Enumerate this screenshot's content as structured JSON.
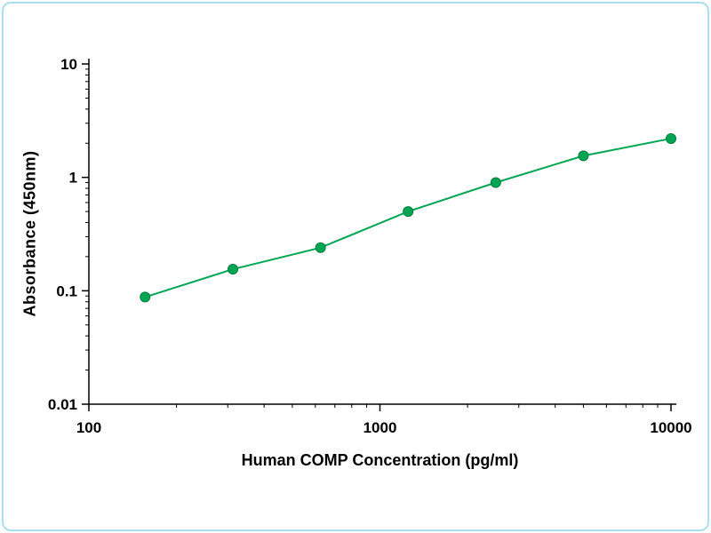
{
  "chart_data": {
    "type": "line",
    "title": "",
    "xlabel": "Human COMP Concentration (pg/ml)",
    "ylabel": "Absorbance (450nm)",
    "xscale": "log",
    "yscale": "log",
    "xlim": [
      100,
      10000
    ],
    "ylim": [
      0.01,
      10
    ],
    "x": [
      156,
      312.5,
      625,
      1250,
      2500,
      5000,
      10000
    ],
    "y": [
      0.088,
      0.155,
      0.24,
      0.5,
      0.9,
      1.55,
      2.2
    ],
    "x_ticks": [
      100,
      1000,
      10000
    ],
    "x_tick_labels": [
      "100",
      "1000",
      "10000"
    ],
    "y_ticks": [
      0.01,
      0.1,
      1,
      10
    ],
    "y_tick_labels": [
      "0.01",
      "0.1",
      "1",
      "10"
    ],
    "grid": false,
    "legend": "none",
    "line_color": "#00a651",
    "marker_color": "#00a651",
    "marker_edge_color": "#007a3d",
    "axis_color": "#000000",
    "frame_color": "#aeddf2"
  }
}
